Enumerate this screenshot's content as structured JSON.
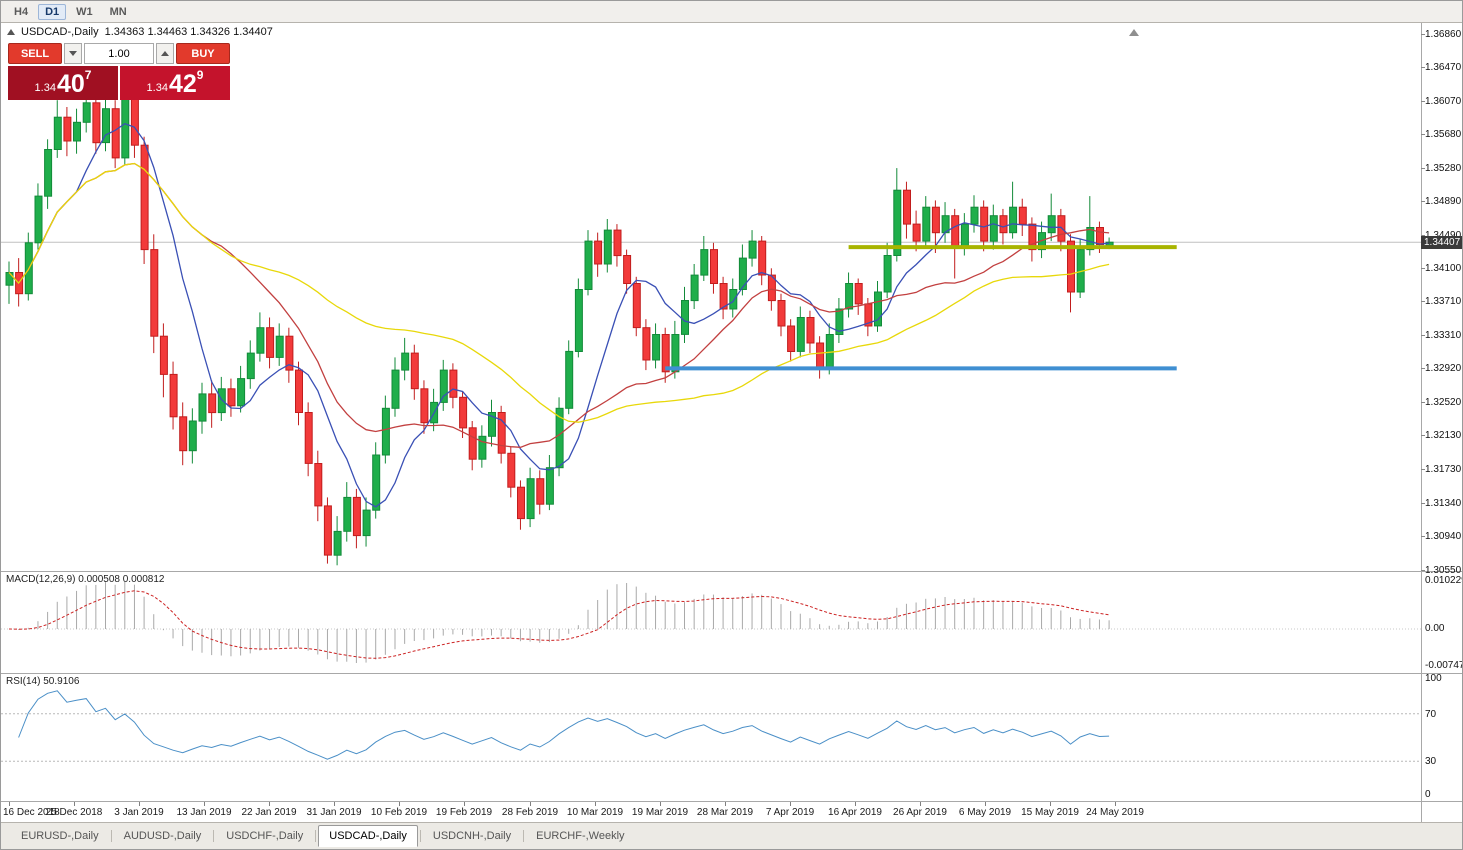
{
  "toolbar": {
    "timeframes": [
      "H4",
      "D1",
      "W1",
      "MN"
    ],
    "active": "D1"
  },
  "chart": {
    "symbol": "USDCAD-,Daily",
    "ohlc": "1.34363 1.34463 1.34326 1.34407"
  },
  "trade_panel": {
    "sell_label": "SELL",
    "buy_label": "BUY",
    "volume": "1.00",
    "sell_price": {
      "prefix": "1.34",
      "big": "40",
      "pip": "7"
    },
    "buy_price": {
      "prefix": "1.34",
      "big": "42",
      "pip": "9"
    }
  },
  "price_axis": {
    "labels": [
      "1.36860",
      "1.36470",
      "1.36070",
      "1.35680",
      "1.35280",
      "1.34890",
      "1.34490",
      "1.34100",
      "1.33710",
      "1.33310",
      "1.32920",
      "1.32520",
      "1.32130",
      "1.31730",
      "1.31340",
      "1.30940",
      "1.30550"
    ],
    "current": "1.34407"
  },
  "macd": {
    "label": "MACD(12,26,9) 0.000508 0.000812",
    "axis": [
      "0.010229",
      "0.00",
      "-0.00747"
    ]
  },
  "rsi": {
    "label": "RSI(14) 50.9106",
    "axis": [
      "100",
      "70",
      "30",
      "0"
    ]
  },
  "tabs": {
    "items": [
      "EURUSD-,Daily",
      "AUDUSD-,Daily",
      "USDCHF-,Daily",
      "USDCAD-,Daily",
      "USDCNH-,Daily",
      "EURCHF-,Weekly"
    ],
    "active": "USDCAD-,Daily"
  },
  "chart_data": {
    "type": "candlestick",
    "title": "USDCAD-,Daily",
    "ylim": [
      1.30533,
      1.3699
    ],
    "x_labels": [
      "16 Dec 2018",
      "25 Dec 2018",
      "3 Jan 2019",
      "13 Jan 2019",
      "22 Jan 2019",
      "31 Jan 2019",
      "10 Feb 2019",
      "19 Feb 2019",
      "28 Feb 2019",
      "10 Mar 2019",
      "19 Mar 2019",
      "28 Mar 2019",
      "7 Apr 2019",
      "16 Apr 2019",
      "26 Apr 2019",
      "6 May 2019",
      "15 May 2019",
      "24 May 2019"
    ],
    "current_price": 1.34407,
    "up_color": "#1fae4b",
    "up_stroke": "#128a39",
    "down_color": "#f23a3a",
    "down_stroke": "#c11d1d",
    "moving_averages": [
      {
        "period": 8,
        "color": "#3a50b5"
      },
      {
        "period": 21,
        "color": "#c24040"
      },
      {
        "period": 45,
        "color": "#e8d80a"
      }
    ],
    "hlines": [
      {
        "price": 1.3435,
        "color": "#a8b400",
        "width": 4,
        "from_bar": 87,
        "to_bar": 121
      },
      {
        "price": 1.3292,
        "color": "#3f8fd2",
        "width": 4,
        "from_bar": 68,
        "to_bar": 121
      }
    ],
    "indicators": [
      {
        "name": "MACD",
        "params": [
          12,
          26,
          9
        ],
        "values": [
          "0.000508",
          "0.000812"
        ],
        "hist_color": "#a9a9a9",
        "signal_color": "#cc2222",
        "axis": [
          "0.010229",
          "0.00",
          "-0.00747"
        ]
      },
      {
        "name": "RSI",
        "params": [
          14
        ],
        "value": "50.9106",
        "color": "#4a8fc7",
        "levels": [
          70,
          30
        ],
        "axis": [
          "100",
          "70",
          "30",
          "0"
        ]
      }
    ],
    "candles": [
      [
        1.339,
        1.3418,
        1.3368,
        1.3405
      ],
      [
        1.3405,
        1.3422,
        1.3365,
        1.338
      ],
      [
        1.338,
        1.3452,
        1.3372,
        1.344
      ],
      [
        1.344,
        1.351,
        1.3432,
        1.3495
      ],
      [
        1.3495,
        1.3562,
        1.348,
        1.355
      ],
      [
        1.355,
        1.3608,
        1.354,
        1.3588
      ],
      [
        1.3588,
        1.36,
        1.3542,
        1.356
      ],
      [
        1.356,
        1.3598,
        1.3545,
        1.3582
      ],
      [
        1.3582,
        1.3622,
        1.357,
        1.3605
      ],
      [
        1.3605,
        1.3618,
        1.3545,
        1.3558
      ],
      [
        1.3558,
        1.3612,
        1.3548,
        1.3598
      ],
      [
        1.3598,
        1.3608,
        1.3528,
        1.354
      ],
      [
        1.354,
        1.3624,
        1.3532,
        1.3612
      ],
      [
        1.3612,
        1.362,
        1.354,
        1.3555
      ],
      [
        1.3555,
        1.3565,
        1.3415,
        1.3432
      ],
      [
        1.3432,
        1.345,
        1.331,
        1.333
      ],
      [
        1.333,
        1.3345,
        1.3258,
        1.3285
      ],
      [
        1.3285,
        1.33,
        1.322,
        1.3235
      ],
      [
        1.3235,
        1.3252,
        1.3178,
        1.3195
      ],
      [
        1.3195,
        1.3245,
        1.318,
        1.323
      ],
      [
        1.323,
        1.3275,
        1.3215,
        1.3262
      ],
      [
        1.3262,
        1.3278,
        1.3222,
        1.324
      ],
      [
        1.324,
        1.3282,
        1.323,
        1.3268
      ],
      [
        1.3268,
        1.328,
        1.3235,
        1.3248
      ],
      [
        1.3248,
        1.3295,
        1.324,
        1.328
      ],
      [
        1.328,
        1.3325,
        1.3268,
        1.331
      ],
      [
        1.331,
        1.3358,
        1.33,
        1.334
      ],
      [
        1.334,
        1.3352,
        1.3292,
        1.3305
      ],
      [
        1.3305,
        1.3345,
        1.3295,
        1.333
      ],
      [
        1.333,
        1.334,
        1.3275,
        1.329
      ],
      [
        1.329,
        1.33,
        1.3225,
        1.324
      ],
      [
        1.324,
        1.3252,
        1.3165,
        1.318
      ],
      [
        1.318,
        1.3195,
        1.3112,
        1.313
      ],
      [
        1.313,
        1.314,
        1.3062,
        1.3072
      ],
      [
        1.3072,
        1.3118,
        1.306,
        1.31
      ],
      [
        1.31,
        1.3158,
        1.3088,
        1.314
      ],
      [
        1.314,
        1.315,
        1.308,
        1.3095
      ],
      [
        1.3095,
        1.314,
        1.3082,
        1.3125
      ],
      [
        1.3125,
        1.3205,
        1.3115,
        1.319
      ],
      [
        1.319,
        1.326,
        1.318,
        1.3245
      ],
      [
        1.3245,
        1.3305,
        1.3235,
        1.329
      ],
      [
        1.329,
        1.3328,
        1.3278,
        1.331
      ],
      [
        1.331,
        1.332,
        1.3255,
        1.3268
      ],
      [
        1.3268,
        1.3278,
        1.3215,
        1.3228
      ],
      [
        1.3228,
        1.3268,
        1.3218,
        1.3252
      ],
      [
        1.3252,
        1.3302,
        1.3242,
        1.329
      ],
      [
        1.329,
        1.3298,
        1.3245,
        1.3258
      ],
      [
        1.3258,
        1.3265,
        1.321,
        1.3222
      ],
      [
        1.3222,
        1.323,
        1.3172,
        1.3185
      ],
      [
        1.3185,
        1.3225,
        1.3175,
        1.3212
      ],
      [
        1.3212,
        1.3255,
        1.32,
        1.324
      ],
      [
        1.324,
        1.3248,
        1.318,
        1.3192
      ],
      [
        1.3192,
        1.32,
        1.314,
        1.3152
      ],
      [
        1.3152,
        1.316,
        1.3102,
        1.3115
      ],
      [
        1.3115,
        1.3175,
        1.3105,
        1.3162
      ],
      [
        1.3162,
        1.3172,
        1.312,
        1.3132
      ],
      [
        1.3132,
        1.319,
        1.3125,
        1.3175
      ],
      [
        1.3175,
        1.3258,
        1.3165,
        1.3245
      ],
      [
        1.3245,
        1.3325,
        1.3238,
        1.3312
      ],
      [
        1.3312,
        1.3398,
        1.3305,
        1.3385
      ],
      [
        1.3385,
        1.3455,
        1.3378,
        1.3442
      ],
      [
        1.3442,
        1.3452,
        1.34,
        1.3415
      ],
      [
        1.3415,
        1.3468,
        1.3405,
        1.3455
      ],
      [
        1.3455,
        1.3462,
        1.3412,
        1.3425
      ],
      [
        1.3425,
        1.3432,
        1.338,
        1.3392
      ],
      [
        1.3392,
        1.34,
        1.333,
        1.334
      ],
      [
        1.334,
        1.335,
        1.329,
        1.3302
      ],
      [
        1.3302,
        1.3345,
        1.3292,
        1.3332
      ],
      [
        1.3332,
        1.334,
        1.3275,
        1.3288
      ],
      [
        1.3288,
        1.3348,
        1.328,
        1.3332
      ],
      [
        1.3332,
        1.3388,
        1.3322,
        1.3372
      ],
      [
        1.3372,
        1.3415,
        1.3362,
        1.3402
      ],
      [
        1.3402,
        1.3448,
        1.3395,
        1.3432
      ],
      [
        1.3432,
        1.344,
        1.338,
        1.3392
      ],
      [
        1.3392,
        1.34,
        1.335,
        1.3362
      ],
      [
        1.3362,
        1.3398,
        1.3352,
        1.3385
      ],
      [
        1.3385,
        1.3438,
        1.3378,
        1.3422
      ],
      [
        1.3422,
        1.3455,
        1.3412,
        1.3442
      ],
      [
        1.3442,
        1.3448,
        1.339,
        1.3402
      ],
      [
        1.3402,
        1.341,
        1.336,
        1.3372
      ],
      [
        1.3372,
        1.338,
        1.333,
        1.3342
      ],
      [
        1.3342,
        1.335,
        1.33,
        1.3312
      ],
      [
        1.3312,
        1.3365,
        1.3305,
        1.3352
      ],
      [
        1.3352,
        1.336,
        1.331,
        1.3322
      ],
      [
        1.3322,
        1.333,
        1.328,
        1.3292
      ],
      [
        1.3292,
        1.3345,
        1.3285,
        1.3332
      ],
      [
        1.3332,
        1.3375,
        1.3322,
        1.3362
      ],
      [
        1.3362,
        1.3405,
        1.3352,
        1.3392
      ],
      [
        1.3392,
        1.3398,
        1.3355,
        1.3368
      ],
      [
        1.3368,
        1.3375,
        1.333,
        1.3342
      ],
      [
        1.3342,
        1.3395,
        1.3335,
        1.3382
      ],
      [
        1.3382,
        1.344,
        1.3375,
        1.3425
      ],
      [
        1.3425,
        1.3528,
        1.3418,
        1.3502
      ],
      [
        1.3502,
        1.3512,
        1.3445,
        1.3462
      ],
      [
        1.3462,
        1.3478,
        1.343,
        1.3442
      ],
      [
        1.3442,
        1.3495,
        1.3435,
        1.3482
      ],
      [
        1.3482,
        1.349,
        1.3428,
        1.3452
      ],
      [
        1.3452,
        1.3488,
        1.344,
        1.3472
      ],
      [
        1.3472,
        1.348,
        1.3398,
        1.3435
      ],
      [
        1.3435,
        1.3475,
        1.3425,
        1.3462
      ],
      [
        1.3462,
        1.3496,
        1.3452,
        1.3482
      ],
      [
        1.3482,
        1.349,
        1.343,
        1.3442
      ],
      [
        1.3442,
        1.3485,
        1.3432,
        1.3472
      ],
      [
        1.3472,
        1.348,
        1.3438,
        1.3452
      ],
      [
        1.3452,
        1.3512,
        1.3445,
        1.3482
      ],
      [
        1.3482,
        1.3492,
        1.3448,
        1.3462
      ],
      [
        1.3462,
        1.347,
        1.3418,
        1.3432
      ],
      [
        1.3432,
        1.3465,
        1.3422,
        1.3452
      ],
      [
        1.3452,
        1.3498,
        1.3442,
        1.3472
      ],
      [
        1.3472,
        1.348,
        1.343,
        1.3442
      ],
      [
        1.3442,
        1.345,
        1.3358,
        1.3382
      ],
      [
        1.3382,
        1.3445,
        1.3375,
        1.3432
      ],
      [
        1.3432,
        1.3495,
        1.3425,
        1.3458
      ],
      [
        1.3458,
        1.3465,
        1.3428,
        1.3438
      ],
      [
        1.34363,
        1.34463,
        1.34326,
        1.34407
      ]
    ]
  }
}
